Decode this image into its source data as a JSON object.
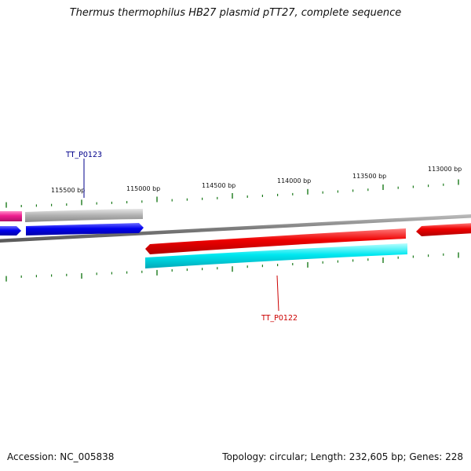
{
  "title": "Thermus thermophilus HB27 plasmid pTT27, complete sequence",
  "footer": {
    "accession": "Accession: NC_005838",
    "summary": "Topology: circular; Length: 232,605 bp; Genes: 228"
  },
  "scale": {
    "labels": [
      "115500 bp",
      "115000 bp",
      "114500 bp",
      "114000 bp",
      "113500 bp",
      "113000 bp"
    ]
  },
  "genes": {
    "upper_label": "TT_P0123",
    "lower_label": "TT_P0122"
  },
  "colors": {
    "backbone": "#808080",
    "tick": "#1a7a1a",
    "gene_red": "#ee0000",
    "gene_cyan": "#00e8f0",
    "gene_blue": "#0000ee",
    "gene_magenta": "#ee1e90",
    "gene_gray": "#a8a8a8",
    "label_blue": "#00008b",
    "label_red": "#cc0000"
  }
}
